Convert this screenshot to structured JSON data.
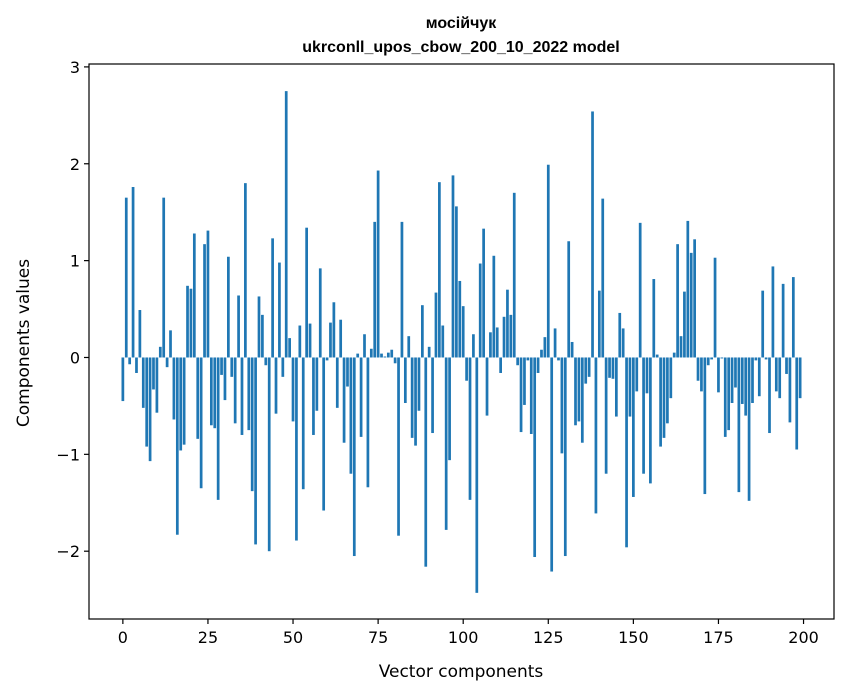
{
  "chart_data": {
    "type": "bar",
    "title": "мосійчук",
    "subtitle": "ukrconll_upos_cbow_200_10_2022 model",
    "xlabel": "Vector components",
    "ylabel": "Components values",
    "xlim": [
      -9.95,
      208.95
    ],
    "ylim": [
      -2.7,
      3.03
    ],
    "x_ticks": [
      0,
      25,
      50,
      75,
      100,
      125,
      150,
      175,
      200
    ],
    "x_tick_labels": [
      "0",
      "25",
      "50",
      "75",
      "100",
      "125",
      "150",
      "175",
      "200"
    ],
    "y_ticks": [
      -2,
      -1,
      0,
      1,
      2,
      3
    ],
    "y_tick_labels": [
      "−2",
      "−1",
      "0",
      "1",
      "2",
      "3"
    ],
    "grid": false,
    "legend": false,
    "bar_color": "#1f77b4",
    "x": [
      0,
      1,
      2,
      3,
      4,
      5,
      6,
      7,
      8,
      9,
      10,
      11,
      12,
      13,
      14,
      15,
      16,
      17,
      18,
      19,
      20,
      21,
      22,
      23,
      24,
      25,
      26,
      27,
      28,
      29,
      30,
      31,
      32,
      33,
      34,
      35,
      36,
      37,
      38,
      39,
      40,
      41,
      42,
      43,
      44,
      45,
      46,
      47,
      48,
      49,
      50,
      51,
      52,
      53,
      54,
      55,
      56,
      57,
      58,
      59,
      60,
      61,
      62,
      63,
      64,
      65,
      66,
      67,
      68,
      69,
      70,
      71,
      72,
      73,
      74,
      75,
      76,
      77,
      78,
      79,
      80,
      81,
      82,
      83,
      84,
      85,
      86,
      87,
      88,
      89,
      90,
      91,
      92,
      93,
      94,
      95,
      96,
      97,
      98,
      99,
      100,
      101,
      102,
      103,
      104,
      105,
      106,
      107,
      108,
      109,
      110,
      111,
      112,
      113,
      114,
      115,
      116,
      117,
      118,
      119,
      120,
      121,
      122,
      123,
      124,
      125,
      126,
      127,
      128,
      129,
      130,
      131,
      132,
      133,
      134,
      135,
      136,
      137,
      138,
      139,
      140,
      141,
      142,
      143,
      144,
      145,
      146,
      147,
      148,
      149,
      150,
      151,
      152,
      153,
      154,
      155,
      156,
      157,
      158,
      159,
      160,
      161,
      162,
      163,
      164,
      165,
      166,
      167,
      168,
      169,
      170,
      171,
      172,
      173,
      174,
      175,
      176,
      177,
      178,
      179,
      180,
      181,
      182,
      183,
      184,
      185,
      186,
      187,
      188,
      189,
      190,
      191,
      192,
      193,
      194,
      195,
      196,
      197,
      198,
      199
    ],
    "values": [
      -0.45,
      1.65,
      -0.07,
      1.76,
      -0.16,
      0.49,
      -0.52,
      -0.92,
      -1.07,
      -0.33,
      -0.57,
      0.11,
      1.65,
      -0.1,
      0.28,
      -0.64,
      -1.83,
      -0.96,
      -0.9,
      0.74,
      0.71,
      1.28,
      -0.84,
      -1.35,
      1.17,
      1.31,
      -0.7,
      -0.73,
      -1.47,
      -0.18,
      -0.44,
      1.04,
      -0.2,
      -0.68,
      0.64,
      -0.8,
      1.8,
      -0.75,
      -1.38,
      -1.93,
      0.63,
      0.44,
      -0.08,
      -2.0,
      1.23,
      -0.58,
      0.98,
      -0.2,
      2.75,
      0.2,
      -0.66,
      -1.89,
      0.33,
      -1.36,
      1.34,
      0.35,
      -0.8,
      -0.55,
      0.92,
      -1.58,
      -0.03,
      0.36,
      0.57,
      -0.52,
      0.39,
      -0.88,
      -0.3,
      -1.2,
      -2.05,
      0.04,
      -0.82,
      0.24,
      -1.34,
      0.09,
      1.4,
      1.93,
      0.04,
      0.01,
      0.05,
      0.08,
      -0.06,
      -1.84,
      1.4,
      -0.47,
      0.22,
      -0.83,
      -0.91,
      -0.55,
      0.54,
      -2.16,
      0.11,
      -0.78,
      0.67,
      1.81,
      0.33,
      -1.78,
      -1.06,
      1.88,
      1.56,
      0.79,
      0.53,
      -0.24,
      -1.47,
      0.24,
      -2.43,
      0.97,
      1.33,
      -0.6,
      0.26,
      1.05,
      0.31,
      -0.16,
      0.42,
      0.7,
      0.44,
      1.7,
      -0.08,
      -0.77,
      -0.49,
      -0.03,
      -0.79,
      -2.06,
      -0.16,
      0.08,
      0.21,
      1.99,
      -2.21,
      0.3,
      -0.03,
      -0.99,
      -2.05,
      1.2,
      0.16,
      -0.7,
      -0.66,
      -0.88,
      -0.27,
      -0.2,
      2.54,
      -1.61,
      0.69,
      1.64,
      -1.2,
      -0.21,
      -0.22,
      -0.61,
      0.46,
      0.3,
      -1.96,
      -0.61,
      -1.44,
      -0.35,
      1.39,
      -1.2,
      -0.37,
      -1.3,
      0.81,
      0.03,
      -0.92,
      -0.83,
      -0.68,
      -0.42,
      0.05,
      1.17,
      0.22,
      0.68,
      1.41,
      1.08,
      1.22,
      -0.24,
      -0.35,
      -1.41,
      -0.08,
      -0.02,
      1.03,
      -0.36,
      -0.01,
      -0.82,
      -0.75,
      -0.47,
      -0.31,
      -1.39,
      -0.48,
      -0.6,
      -1.48,
      -0.47,
      -0.03,
      -0.4,
      0.69,
      -0.02,
      -0.78,
      0.94,
      -0.35,
      -0.42,
      0.76,
      -0.17,
      -0.67,
      0.83,
      -0.95,
      -0.42
    ]
  }
}
